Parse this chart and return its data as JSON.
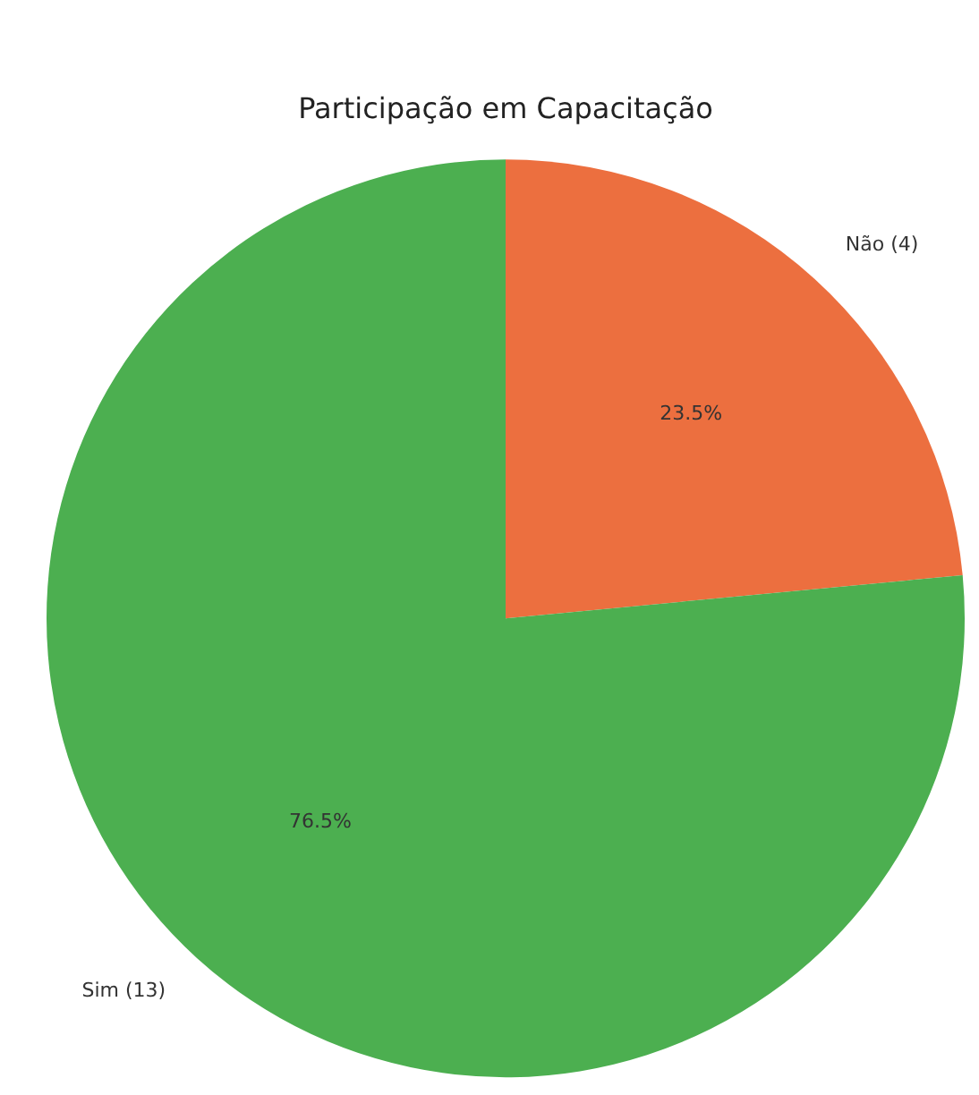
{
  "chart_data": {
    "type": "pie",
    "title": "Participação em Capacitação",
    "categories": [
      "Não (4)",
      "Sim (13)"
    ],
    "values": [
      23.5,
      76.5
    ],
    "colors": [
      "#ec6f3f",
      "#4caf50"
    ],
    "value_labels": [
      "23.5%",
      "76.5%"
    ],
    "legend": false
  }
}
